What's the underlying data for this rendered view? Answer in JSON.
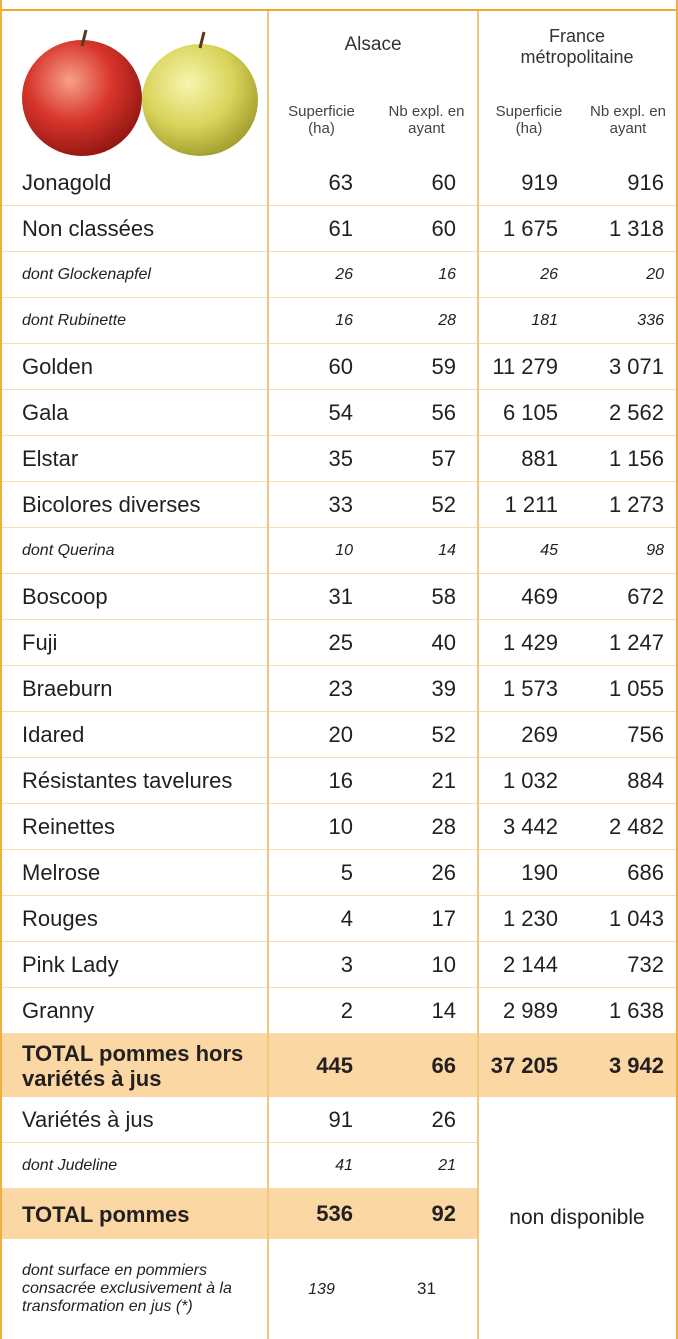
{
  "header": {
    "alsace": "Alsace",
    "france": "France métropolitaine",
    "subheaders": [
      "Superficie (ha)",
      "Nb expl. en ayant",
      "Superficie (ha)",
      "Nb expl. en ayant"
    ]
  },
  "table": {
    "rows": [
      {
        "kind": "main",
        "label": "Jonagold",
        "values": [
          "63",
          "60",
          "919",
          "916"
        ]
      },
      {
        "kind": "main",
        "label": "Non classées",
        "values": [
          "61",
          "60",
          "1 675",
          "1 318"
        ]
      },
      {
        "kind": "sub",
        "label": "dont Glockenapfel",
        "values": [
          "26",
          "16",
          "26",
          "20"
        ]
      },
      {
        "kind": "sub",
        "label": "dont Rubinette",
        "values": [
          "16",
          "28",
          "181",
          "336"
        ]
      },
      {
        "kind": "main",
        "label": "Golden",
        "values": [
          "60",
          "59",
          "11 279",
          "3 071"
        ]
      },
      {
        "kind": "main",
        "label": "Gala",
        "values": [
          "54",
          "56",
          "6 105",
          "2 562"
        ]
      },
      {
        "kind": "main",
        "label": "Elstar",
        "values": [
          "35",
          "57",
          "881",
          "1 156"
        ]
      },
      {
        "kind": "main",
        "label": "Bicolores diverses",
        "values": [
          "33",
          "52",
          "1 211",
          "1 273"
        ]
      },
      {
        "kind": "sub",
        "label": "dont Querina",
        "values": [
          "10",
          "14",
          "45",
          "98"
        ]
      },
      {
        "kind": "main",
        "label": "Boscoop",
        "values": [
          "31",
          "58",
          "469",
          "672"
        ]
      },
      {
        "kind": "main",
        "label": "Fuji",
        "values": [
          "25",
          "40",
          "1 429",
          "1 247"
        ]
      },
      {
        "kind": "main",
        "label": "Braeburn",
        "values": [
          "23",
          "39",
          "1 573",
          "1 055"
        ]
      },
      {
        "kind": "main",
        "label": "Idared",
        "values": [
          "20",
          "52",
          "269",
          "756"
        ]
      },
      {
        "kind": "main",
        "label": "Résistantes tavelures",
        "values": [
          "16",
          "21",
          "1 032",
          "884"
        ]
      },
      {
        "kind": "main",
        "label": "Reinettes",
        "values": [
          "10",
          "28",
          "3 442",
          "2 482"
        ]
      },
      {
        "kind": "main",
        "label": "Melrose",
        "values": [
          "5",
          "26",
          "190",
          "686"
        ]
      },
      {
        "kind": "main",
        "label": "Rouges",
        "values": [
          "4",
          "17",
          "1 230",
          "1 043"
        ]
      },
      {
        "kind": "main",
        "label": "Pink Lady",
        "values": [
          "3",
          "10",
          "2 144",
          "732"
        ]
      },
      {
        "kind": "main",
        "label": "Granny",
        "values": [
          "2",
          "14",
          "2 989",
          "1 638"
        ]
      },
      {
        "kind": "total",
        "label": "TOTAL pommes hors variétés à jus",
        "values": [
          "445",
          "66",
          "37 205",
          "3 942"
        ]
      },
      {
        "kind": "main",
        "label": "Variétés à jus",
        "values": [
          "91",
          "26"
        ]
      },
      {
        "kind": "sub",
        "label": "dont Judeline",
        "values": [
          "41",
          "21"
        ]
      },
      {
        "kind": "total2",
        "label": "TOTAL pommes",
        "values": [
          "536",
          "92"
        ]
      },
      {
        "kind": "note",
        "label": "dont surface en pommiers consacrée exclusivement à la transformation en jus (*)",
        "values": [
          "139",
          "31"
        ]
      }
    ],
    "not_available": "non disponible"
  }
}
